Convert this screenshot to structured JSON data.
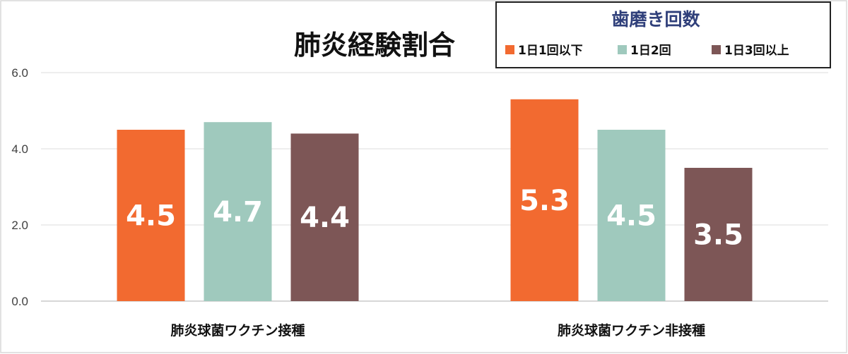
{
  "chart_data": {
    "type": "bar",
    "title": "肺炎経験割合",
    "categories": [
      "肺炎球菌ワクチン接種",
      "肺炎球菌ワクチン非接種"
    ],
    "series": [
      {
        "name": "1日1回以下",
        "values": [
          4.5,
          5.3
        ],
        "color": "#f26a30"
      },
      {
        "name": "1日2回",
        "values": [
          4.7,
          4.5
        ],
        "color": "#9fc9bd"
      },
      {
        "name": "1日3回以上",
        "values": [
          4.4,
          3.5
        ],
        "color": "#7d5656"
      }
    ],
    "value_labels": [
      [
        "4.5",
        "5.3"
      ],
      [
        "4.7",
        "4.5"
      ],
      [
        "4.4",
        "3.5"
      ]
    ],
    "legend_title": "歯磨き回数",
    "legend_position": "top-right",
    "yticks": [
      "0.0",
      "2.0",
      "4.0",
      "6.0"
    ],
    "ylim": [
      0,
      6
    ],
    "grid": true
  }
}
